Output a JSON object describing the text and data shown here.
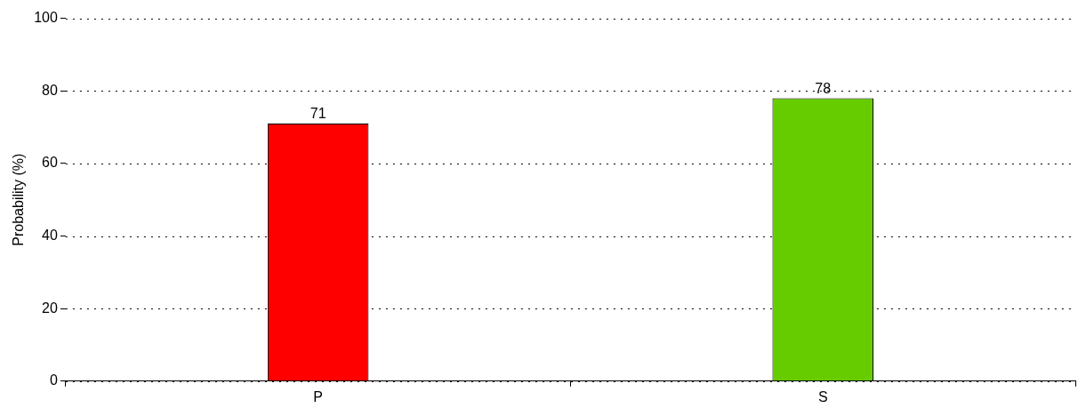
{
  "chart_data": {
    "type": "bar",
    "ylabel": "Probability (%)",
    "categories": [
      "P",
      "S"
    ],
    "values": [
      71,
      78
    ],
    "colors": [
      "#ff0000",
      "#66cc00"
    ],
    "ylim": [
      0,
      100
    ],
    "yticks": [
      0,
      20,
      40,
      60,
      80,
      100
    ],
    "grid": "y",
    "legend": false,
    "data_labels": true
  }
}
